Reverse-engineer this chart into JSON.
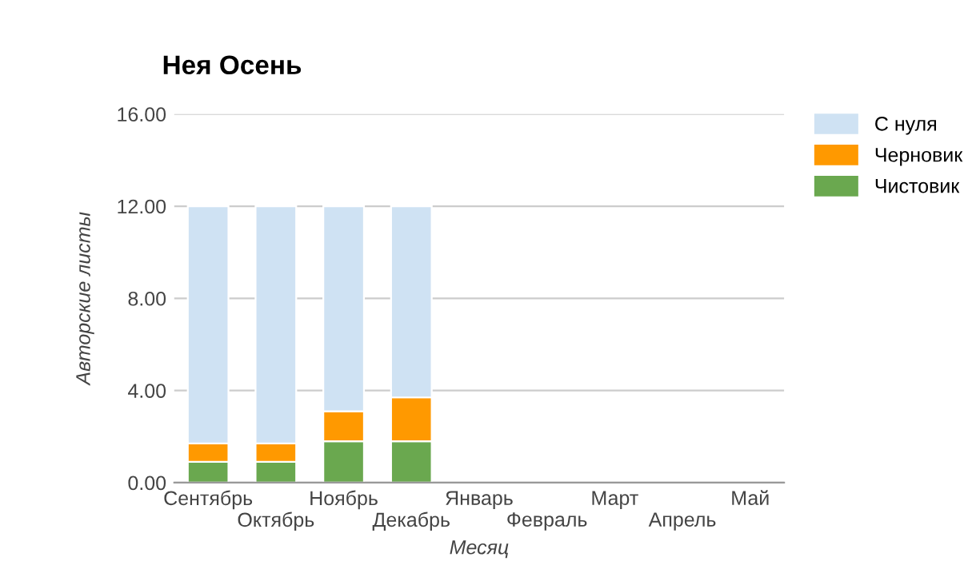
{
  "chart_data": {
    "type": "bar",
    "title": "Нея Осень",
    "xlabel": "Месяц",
    "ylabel": "Авторские листы",
    "categories": [
      "Сентябрь",
      "Октябрь",
      "Ноябрь",
      "Декабрь",
      "Январь",
      "Февраль",
      "Март",
      "Апрель",
      "Май"
    ],
    "stacked": true,
    "series": [
      {
        "name": "Чистовик",
        "color": "#6aa84f",
        "values": [
          0.9,
          0.9,
          1.8,
          1.8,
          null,
          null,
          null,
          null,
          null
        ]
      },
      {
        "name": "Черновик",
        "color": "#ff9900",
        "values": [
          0.8,
          0.8,
          1.3,
          1.9,
          null,
          null,
          null,
          null,
          null
        ]
      },
      {
        "name": "С нуля",
        "color": "#cfe2f3",
        "values": [
          10.3,
          10.3,
          8.9,
          8.3,
          null,
          null,
          null,
          null,
          null
        ]
      }
    ],
    "ylim": [
      0,
      16
    ],
    "yticks": [
      {
        "value": 0,
        "label": "0.00"
      },
      {
        "value": 4,
        "label": "4.00"
      },
      {
        "value": 8,
        "label": "8.00"
      },
      {
        "value": 12,
        "label": "12.00"
      },
      {
        "value": 16,
        "label": "16.00"
      }
    ],
    "grid": "y",
    "legend": "top right"
  }
}
